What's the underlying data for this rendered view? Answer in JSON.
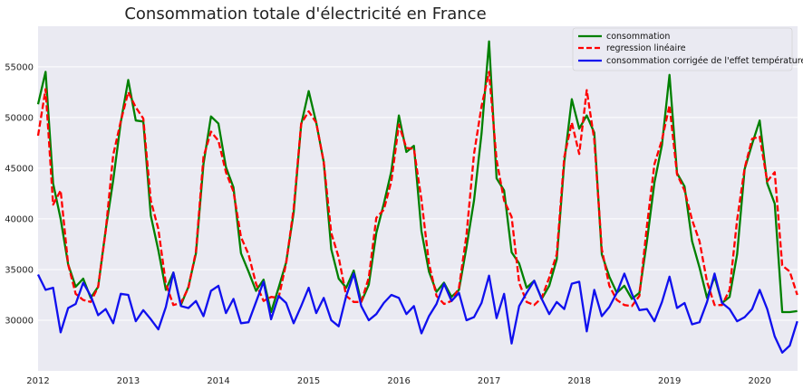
{
  "chart_data": {
    "type": "line",
    "title": "Consommation totale d'électricité en France",
    "xlabel": "",
    "ylabel": "",
    "xlim": [
      2012.0,
      2020.42
    ],
    "ylim": [
      25000,
      59000
    ],
    "x_ticks": [
      2012,
      2013,
      2014,
      2015,
      2016,
      2017,
      2018,
      2019,
      2020
    ],
    "y_ticks": [
      30000,
      35000,
      40000,
      45000,
      50000,
      55000
    ],
    "grid": true,
    "legend_position": "top-right",
    "x_start": "2012-01",
    "x_step": "1 month",
    "series": [
      {
        "name": "consommation",
        "color": "#008000",
        "style": "solid",
        "values": [
          51300,
          54500,
          43500,
          40000,
          35500,
          33300,
          34100,
          32200,
          33300,
          38900,
          43800,
          49500,
          53700,
          49700,
          49600,
          40300,
          36900,
          33000,
          34700,
          31500,
          33300,
          36600,
          45400,
          50100,
          49400,
          45100,
          43100,
          36600,
          34800,
          32900,
          34000,
          30800,
          33200,
          35700,
          40600,
          49300,
          52600,
          49500,
          45600,
          37000,
          34100,
          33200,
          34900,
          31800,
          33500,
          38600,
          41500,
          44700,
          50200,
          46600,
          47200,
          38800,
          34800,
          32800,
          33700,
          32300,
          33000,
          37200,
          41800,
          48400,
          57500,
          44000,
          42800,
          36700,
          35600,
          33200,
          33900,
          32100,
          33400,
          36000,
          45600,
          51800,
          48900,
          50200,
          48500,
          36500,
          34300,
          32700,
          33400,
          32100,
          32700,
          37800,
          43600,
          47300,
          54200,
          44500,
          43200,
          37800,
          35200,
          32200,
          34300,
          31700,
          32300,
          36500,
          44900,
          47400,
          49700,
          43500,
          41500,
          30800,
          30800,
          30900
        ]
      },
      {
        "name": "regression linéaire",
        "color": "#ff0000",
        "style": "dashed",
        "values": [
          48200,
          52800,
          41400,
          42800,
          35500,
          32600,
          32000,
          31800,
          33300,
          38800,
          46300,
          49600,
          52500,
          51000,
          49900,
          41800,
          39000,
          33600,
          31500,
          31700,
          33200,
          36800,
          46100,
          48600,
          47700,
          44600,
          42700,
          38200,
          36500,
          33600,
          31900,
          32300,
          32200,
          35600,
          41000,
          49400,
          50600,
          49500,
          45600,
          38600,
          36200,
          32400,
          31800,
          31800,
          34200,
          40100,
          40900,
          43700,
          49300,
          47000,
          46900,
          41900,
          35600,
          32400,
          31600,
          31900,
          33200,
          38400,
          46400,
          51100,
          54500,
          45800,
          41800,
          40200,
          33700,
          31800,
          31500,
          32200,
          34200,
          36500,
          46100,
          49500,
          46400,
          52700,
          47800,
          37000,
          33400,
          32000,
          31500,
          31400,
          32400,
          39300,
          45400,
          47800,
          51200,
          44400,
          42800,
          39900,
          37800,
          33800,
          31500,
          31500,
          33000,
          39900,
          45000,
          47900,
          48100,
          43700,
          44600,
          35400,
          34800,
          32500
        ]
      },
      {
        "name": "consommation corrigée de l'effet température",
        "color": "#1010ee",
        "style": "solid",
        "values": [
          34500,
          33000,
          33200,
          28800,
          31200,
          31600,
          33700,
          32400,
          30500,
          31100,
          29700,
          32600,
          32500,
          29900,
          31000,
          30100,
          29100,
          31300,
          34700,
          31400,
          31200,
          31900,
          30400,
          32900,
          33400,
          30700,
          32100,
          29700,
          29800,
          31800,
          33800,
          30100,
          32400,
          31700,
          29700,
          31400,
          33200,
          30700,
          32200,
          30000,
          29400,
          32400,
          34600,
          31400,
          30000,
          30600,
          31700,
          32500,
          32200,
          30600,
          31400,
          28700,
          30400,
          31600,
          33600,
          31900,
          32700,
          30000,
          30300,
          31700,
          34400,
          30200,
          32600,
          27700,
          31400,
          32700,
          33900,
          32100,
          30600,
          31800,
          31100,
          33600,
          33800,
          28900,
          33000,
          30400,
          31300,
          32700,
          34600,
          32600,
          31000,
          31100,
          29900,
          31800,
          34300,
          31200,
          31700,
          29600,
          29800,
          31800,
          34600,
          31700,
          31100,
          29900,
          30300,
          31100,
          33000,
          31100,
          28400,
          26800,
          27500,
          29900
        ]
      }
    ]
  }
}
